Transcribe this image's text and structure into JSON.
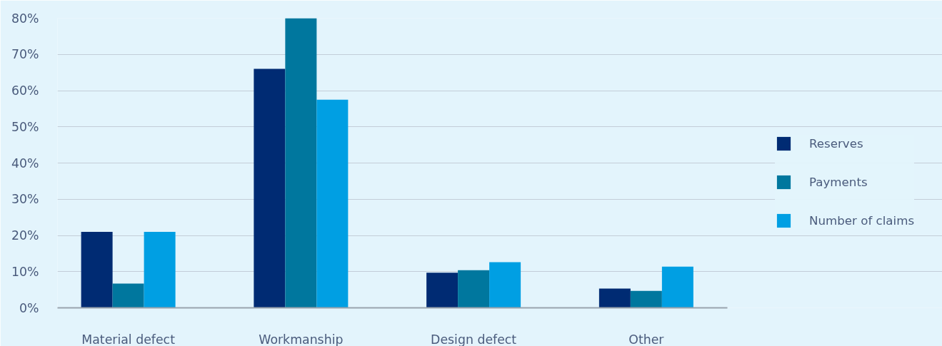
{
  "chart_data": {
    "type": "bar",
    "categories": [
      "Material defect",
      "Workmanship",
      "Design defect",
      "Other"
    ],
    "series": [
      {
        "name": "Reserves",
        "color": "#002b73",
        "values": [
          21,
          66,
          9.7,
          5.3
        ]
      },
      {
        "name": "Payments",
        "color": "#00779e",
        "values": [
          6.7,
          80,
          10.4,
          4.7
        ]
      },
      {
        "name": "Number of claims",
        "color": "#009fe3",
        "values": [
          21,
          57.5,
          12.6,
          11.4
        ]
      }
    ],
    "ylim": [
      0,
      80
    ],
    "yticks": [
      {
        "value": 0,
        "label": "0%"
      },
      {
        "value": 10,
        "label": "10%"
      },
      {
        "value": 20,
        "label": "20%"
      },
      {
        "value": 30,
        "label": "30%"
      },
      {
        "value": 40,
        "label": "40%"
      },
      {
        "value": 50,
        "label": "50%"
      },
      {
        "value": 60,
        "label": "60%"
      },
      {
        "value": 70,
        "label": "70%"
      },
      {
        "value": 80,
        "label": "80%"
      }
    ],
    "grid": "y",
    "legend": "right"
  }
}
